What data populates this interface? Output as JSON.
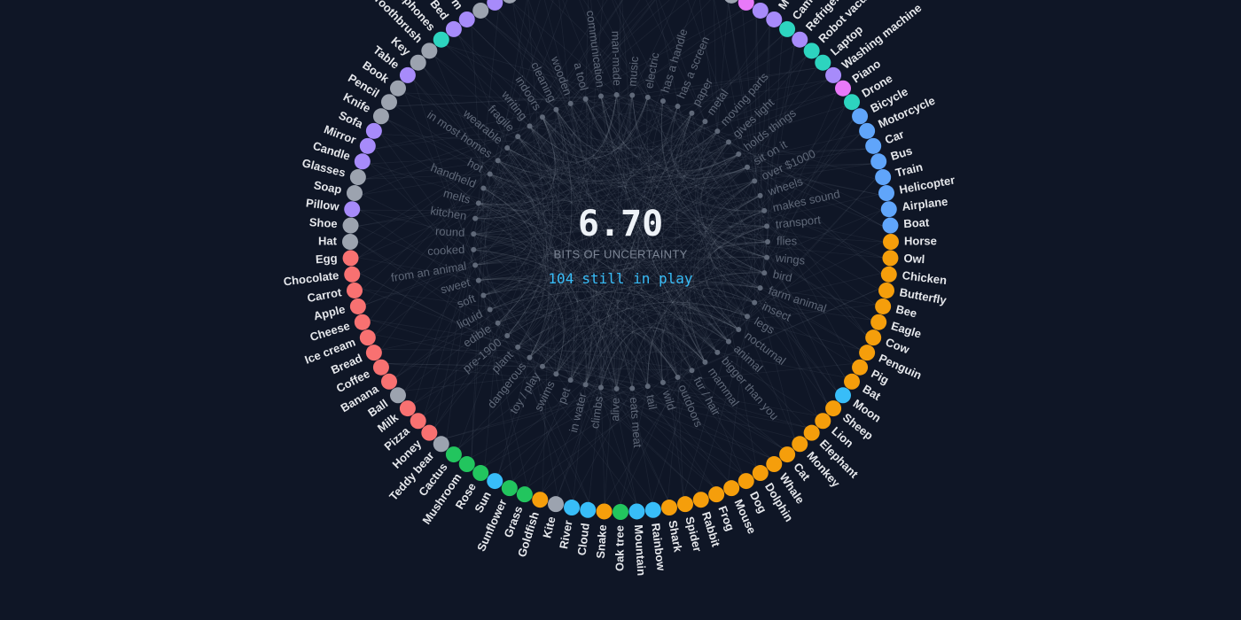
{
  "ring": {
    "center_value": "6.70",
    "center_label": "BITS OF UNCERTAINTY",
    "in_play": 104,
    "in_play_label": "still in play",
    "items": [
      "Horse",
      "Owl",
      "Chicken",
      "Butterfly",
      "Bee",
      "Eagle",
      "Cow",
      "Penguin",
      "Pig",
      "Bat",
      "Moon",
      "Sheep",
      "Lion",
      "Elephant",
      "Monkey",
      "Cat",
      "Whale",
      "Dolphin",
      "Dog",
      "Mouse",
      "Frog",
      "Rabbit",
      "Spider",
      "Shark",
      "Rainbow",
      "Mountain",
      "Oak tree",
      "Snake",
      "Cloud",
      "River",
      "Kite",
      "Goldfish",
      "Grass",
      "Sunflower",
      "Sun",
      "Rose",
      "Mushroom",
      "Cactus",
      "Teddy bear",
      "Honey",
      "Pizza",
      "Milk",
      "Ball",
      "Banana",
      "Coffee",
      "Bread",
      "Ice cream",
      "Cheese",
      "Apple",
      "Carrot",
      "Chocolate",
      "Egg",
      "Hat",
      "Shoe",
      "Pillow",
      "Soap",
      "Glasses",
      "Candle",
      "Mirror",
      "Sofa",
      "Knife",
      "Pencil",
      "Book",
      "Table",
      "Key",
      "Toothbrush",
      "Headphones",
      "Bed",
      "m",
      null,
      null,
      null,
      null,
      null,
      null,
      null,
      null,
      null,
      null,
      null,
      null,
      null,
      null,
      null,
      null,
      null,
      null,
      null,
      "M",
      "Camera",
      "Refrigerator",
      "Robot vacuum",
      "Laptop",
      "Washing machine",
      "Piano",
      "Drone",
      "Bicycle",
      "Motorcycle",
      "Car",
      "Bus",
      "Train",
      "Helicopter",
      "Airplane",
      "Boat"
    ],
    "item_colors": [
      "#f59e0b",
      "#f59e0b",
      "#f59e0b",
      "#f59e0b",
      "#f59e0b",
      "#f59e0b",
      "#f59e0b",
      "#f59e0b",
      "#f59e0b",
      "#f59e0b",
      "#38bdf8",
      "#f59e0b",
      "#f59e0b",
      "#f59e0b",
      "#f59e0b",
      "#f59e0b",
      "#f59e0b",
      "#f59e0b",
      "#f59e0b",
      "#f59e0b",
      "#f59e0b",
      "#f59e0b",
      "#f59e0b",
      "#f59e0b",
      "#38bdf8",
      "#38bdf8",
      "#22c55e",
      "#f59e0b",
      "#38bdf8",
      "#38bdf8",
      "#9ca3af",
      "#f59e0b",
      "#22c55e",
      "#22c55e",
      "#38bdf8",
      "#22c55e",
      "#22c55e",
      "#22c55e",
      "#9ca3af",
      "#f87171",
      "#f87171",
      "#f87171",
      "#9ca3af",
      "#f87171",
      "#f87171",
      "#f87171",
      "#f87171",
      "#f87171",
      "#f87171",
      "#f87171",
      "#f87171",
      "#f87171",
      "#9ca3af",
      "#9ca3af",
      "#a78bfa",
      "#9ca3af",
      "#9ca3af",
      "#a78bfa",
      "#a78bfa",
      "#a78bfa",
      "#9ca3af",
      "#9ca3af",
      "#9ca3af",
      "#a78bfa",
      "#9ca3af",
      "#9ca3af",
      "#2dd4bf",
      "#a78bfa",
      "#a78bfa",
      "#9ca3af",
      "#a78bfa",
      "#9ca3af",
      "#9ca3af",
      "#9ca3af",
      "#9ca3af",
      "#9ca3af",
      "#9ca3af",
      "#9ca3af",
      "#9ca3af",
      "#9ca3af",
      "#9ca3af",
      "#9ca3af",
      "#9ca3af",
      "#9ca3af",
      "#9ca3af",
      "#9ca3af",
      "#e879f9",
      "#a78bfa",
      "#a78bfa",
      "#2dd4bf",
      "#a78bfa",
      "#2dd4bf",
      "#2dd4bf",
      "#a78bfa",
      "#e879f9",
      "#2dd4bf",
      "#60a5fa",
      "#60a5fa",
      "#60a5fa",
      "#60a5fa",
      "#60a5fa",
      "#60a5fa",
      "#60a5fa",
      "#60a5fa"
    ],
    "attributes": [
      "flies",
      "wings",
      "bird",
      "farm animal",
      "insect",
      "legs",
      "nocturnal",
      "animal",
      "bigger than you",
      "mammal",
      "fur / hair",
      "outdoors",
      "wild",
      "tail",
      "eats meat",
      "alive",
      "climbs",
      "in water",
      "pet",
      "swims",
      "toy / play",
      "dangerous",
      "plant",
      "pre-1900",
      "edible",
      "liquid",
      "soft",
      "sweet",
      "from an animal",
      "cooked",
      "round",
      "kitchen",
      "melts",
      "handheld",
      "hot",
      "in most homes",
      "wearable",
      "fragile",
      "writing",
      "indoors",
      "cleaning",
      "wooden",
      "a tool",
      "communication",
      "man-made",
      "music",
      "electric",
      "has a handle",
      "has a screen",
      "paper",
      "metal",
      "moving parts",
      "gives light",
      "holds things",
      "sit on it",
      "over $1000",
      "wheels",
      "makes sound",
      "transport"
    ]
  }
}
